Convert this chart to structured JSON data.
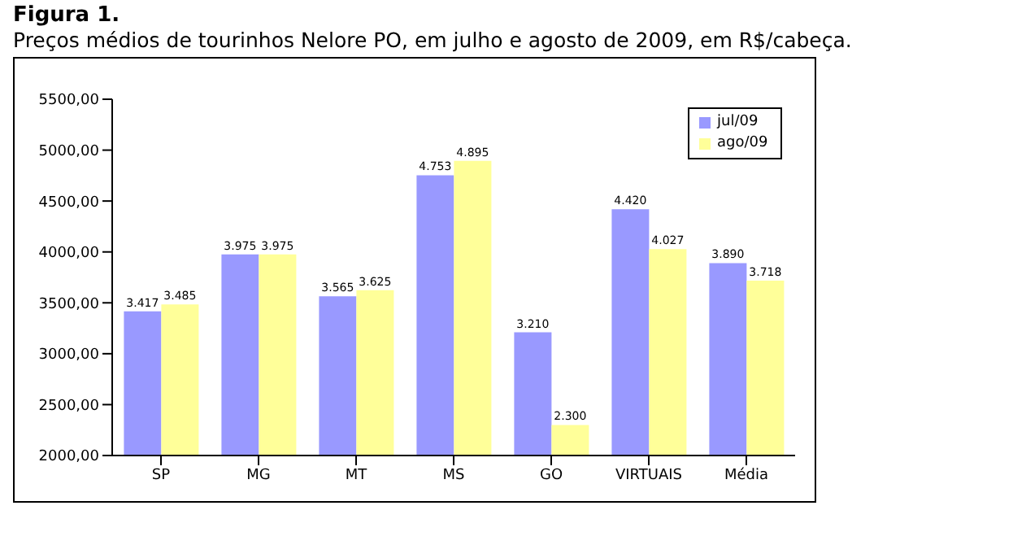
{
  "chart_data": {
    "type": "bar",
    "title": "Figura 1.",
    "subtitle": "Preços médios de tourinhos Nelore PO, em julho e agosto de 2009, em R$/cabeça.",
    "categories": [
      "SP",
      "MG",
      "MT",
      "MS",
      "GO",
      "VIRTUAIS",
      "Média"
    ],
    "series": [
      {
        "name": "jul/09",
        "color": "#9999ff",
        "values": [
          3417,
          3975,
          3565,
          4753,
          3210,
          4420,
          3890
        ],
        "value_labels": [
          "3.417",
          "3.975",
          "3.565",
          "4.753",
          "3.210",
          "4.420",
          "3.890"
        ]
      },
      {
        "name": "ago/09",
        "color": "#ffff99",
        "values": [
          3485,
          3975,
          3625,
          4895,
          2300,
          4027,
          3718
        ],
        "value_labels": [
          "3.485",
          "3.975",
          "3.625",
          "4.895",
          "2.300",
          "4.027",
          "3.718"
        ]
      }
    ],
    "ylim": [
      2000,
      5500
    ],
    "yticks": [
      {
        "value": 2000,
        "label": "2000,00"
      },
      {
        "value": 2500,
        "label": "2500,00"
      },
      {
        "value": 3000,
        "label": "3000,00"
      },
      {
        "value": 3500,
        "label": "3500,00"
      },
      {
        "value": 4000,
        "label": "4000,00"
      },
      {
        "value": 4500,
        "label": "4500,00"
      },
      {
        "value": 5000,
        "label": "5000,00"
      },
      {
        "value": 5500,
        "label": "5500,00"
      }
    ],
    "legend": "top right"
  }
}
